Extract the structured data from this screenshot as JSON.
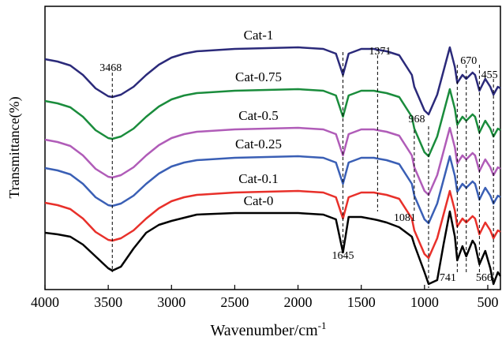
{
  "chart_data": {
    "type": "line",
    "xlabel": "Wavenumber/cm",
    "xlabel_superscript": "-1",
    "ylabel": "Transmittance(%)",
    "xlim": [
      4000,
      400
    ],
    "xticks": [
      4000,
      3500,
      3000,
      2500,
      2000,
      1500,
      1000,
      500
    ],
    "ylim": [
      0,
      359
    ],
    "x": [
      4000,
      3900,
      3800,
      3700,
      3600,
      3500,
      3468,
      3400,
      3300,
      3200,
      3100,
      3000,
      2900,
      2800,
      2500,
      2000,
      1800,
      1700,
      1645,
      1600,
      1500,
      1400,
      1371,
      1300,
      1200,
      1100,
      1081,
      1000,
      968,
      900,
      850,
      800,
      760,
      741,
      700,
      670,
      620,
      600,
      566,
      520,
      480,
      455,
      420,
      400
    ],
    "series": [
      {
        "name": "Cat-1",
        "color": "#2b2a7a",
        "values": [
          292,
          289,
          284,
          272,
          255,
          245,
          244,
          247,
          257,
          272,
          285,
          294,
          299,
          302,
          305,
          307,
          305,
          299,
          272,
          299,
          305,
          305,
          304,
          302,
          297,
          272,
          257,
          227,
          222,
          247,
          277,
          307,
          282,
          262,
          272,
          267,
          275,
          272,
          252,
          267,
          257,
          247,
          257,
          255
        ]
      },
      {
        "name": "Cat-0.75",
        "color": "#1a8c3c",
        "values": [
          239,
          236,
          231,
          219,
          202,
          192,
          191,
          194,
          204,
          219,
          232,
          241,
          246,
          249,
          252,
          254,
          252,
          246,
          219,
          246,
          252,
          252,
          251,
          249,
          244,
          219,
          204,
          174,
          169,
          194,
          224,
          254,
          229,
          209,
          219,
          214,
          222,
          219,
          199,
          214,
          204,
          194,
          204,
          202
        ]
      },
      {
        "name": "Cat-0.5",
        "color": "#b05cb8",
        "values": [
          190,
          187,
          182,
          170,
          153,
          143,
          142,
          145,
          155,
          170,
          183,
          192,
          197,
          200,
          203,
          205,
          203,
          197,
          170,
          197,
          203,
          203,
          202,
          200,
          195,
          170,
          155,
          125,
          120,
          145,
          175,
          205,
          180,
          160,
          170,
          165,
          173,
          170,
          150,
          165,
          155,
          145,
          155,
          153
        ]
      },
      {
        "name": "Cat-0.25",
        "color": "#3a5fb5",
        "values": [
          154,
          151,
          146,
          134,
          117,
          107,
          106,
          109,
          119,
          134,
          147,
          156,
          161,
          164,
          167,
          169,
          167,
          161,
          134,
          161,
          167,
          167,
          166,
          164,
          159,
          134,
          119,
          89,
          84,
          109,
          139,
          169,
          144,
          124,
          134,
          129,
          137,
          134,
          114,
          129,
          119,
          109,
          119,
          117
        ]
      },
      {
        "name": "Cat-0.1",
        "color": "#e8302a",
        "values": [
          110,
          107,
          102,
          90,
          73,
          63,
          62,
          65,
          75,
          90,
          103,
          112,
          117,
          120,
          123,
          125,
          123,
          117,
          90,
          117,
          123,
          123,
          122,
          120,
          115,
          90,
          75,
          45,
          40,
          65,
          95,
          125,
          100,
          80,
          90,
          85,
          93,
          90,
          70,
          85,
          75,
          65,
          75,
          73
        ]
      },
      {
        "name": "Cat-0",
        "color": "#000000",
        "values": [
          72,
          70,
          67,
          57,
          42,
          27,
          24,
          29,
          52,
          72,
          82,
          87,
          91,
          95,
          97,
          97,
          95,
          89,
          47,
          92,
          92,
          89,
          88,
          85,
          79,
          67,
          57,
          22,
          7,
          12,
          57,
          99,
          67,
          37,
          55,
          42,
          62,
          57,
          32,
          49,
          27,
          7,
          22,
          17
        ]
      }
    ],
    "peaks": [
      3468,
      1645,
      1371,
      1081,
      968,
      741,
      670,
      566,
      455
    ]
  }
}
